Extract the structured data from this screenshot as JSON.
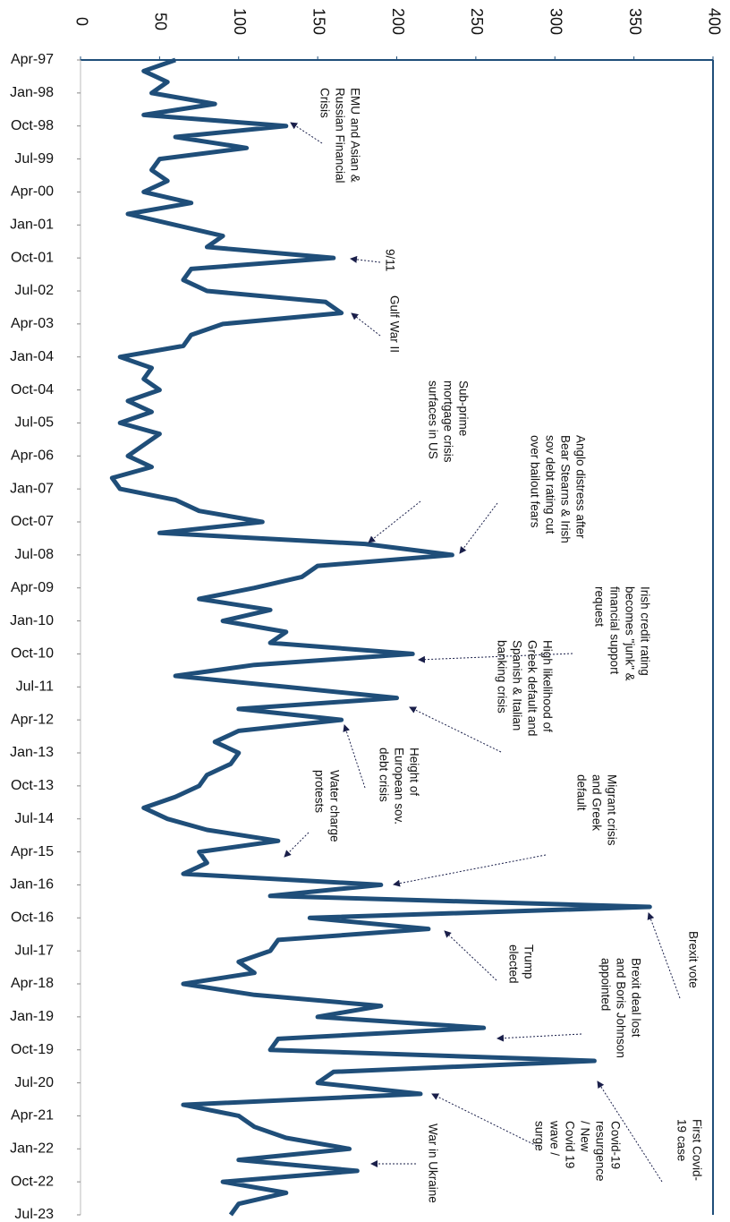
{
  "chart_data": {
    "type": "line",
    "orientation": "vertical-categories",
    "categories": [
      "Apr-97",
      null,
      null,
      "Jan-98",
      null,
      null,
      "Oct-98",
      null,
      null,
      "Jul-99",
      null,
      null,
      "Apr-00",
      null,
      null,
      "Jan-01",
      null,
      null,
      "Oct-01",
      null,
      null,
      "Jul-02",
      null,
      null,
      "Apr-03",
      null,
      null,
      "Jan-04",
      null,
      null,
      "Oct-04",
      null,
      null,
      "Jul-05",
      null,
      null,
      "Apr-06",
      null,
      null,
      "Jan-07",
      null,
      null,
      "Oct-07",
      null,
      null,
      "Jul-08",
      null,
      null,
      "Apr-09",
      null,
      null,
      "Jan-10",
      null,
      null,
      "Oct-10",
      null,
      null,
      "Jul-11",
      null,
      null,
      "Apr-12",
      null,
      null,
      "Jan-13",
      null,
      null,
      "Oct-13",
      null,
      null,
      "Jul-14",
      null,
      null,
      "Apr-15",
      null,
      null,
      "Jan-16",
      null,
      null,
      "Oct-16",
      null,
      null,
      "Jul-17",
      null,
      null,
      "Apr-18",
      null,
      null,
      "Jan-19",
      null,
      null,
      "Oct-19",
      null,
      null,
      "Jul-20",
      null,
      null,
      "Apr-21",
      null,
      null,
      "Jan-22",
      null,
      null,
      "Oct-22",
      null,
      null,
      "Jul-23"
    ],
    "values": [
      60,
      40,
      55,
      45,
      85,
      40,
      130,
      60,
      105,
      50,
      45,
      55,
      40,
      70,
      30,
      60,
      90,
      80,
      160,
      70,
      65,
      80,
      155,
      165,
      90,
      70,
      65,
      25,
      45,
      40,
      50,
      30,
      45,
      25,
      50,
      40,
      30,
      45,
      20,
      25,
      60,
      75,
      115,
      50,
      180,
      235,
      150,
      140,
      110,
      75,
      120,
      90,
      130,
      120,
      210,
      110,
      60,
      130,
      200,
      100,
      165,
      100,
      85,
      100,
      95,
      80,
      75,
      60,
      40,
      55,
      80,
      125,
      75,
      80,
      65,
      190,
      120,
      360,
      145,
      220,
      125,
      120,
      100,
      110,
      65,
      110,
      190,
      150,
      255,
      125,
      120,
      325,
      160,
      150,
      215,
      65,
      100,
      110,
      130,
      170,
      100,
      175,
      90,
      130,
      100,
      95
    ],
    "color": "#1f4e79",
    "ylim": [
      0,
      400
    ],
    "yticks": [
      0,
      50,
      100,
      150,
      200,
      250,
      300,
      350,
      400
    ],
    "annotations": [
      [
        "EMU and Asian &",
        "Russian Financial",
        "Crisis"
      ],
      [
        "9/11"
      ],
      [
        "Gulf War II"
      ],
      [
        "Sub-prime",
        "mortgage crisis",
        "surfaces in US"
      ],
      [
        "Anglo distress after",
        "Bear Stearns & Irish",
        "sov debt rating cut",
        "over bailout fears"
      ],
      [
        "Irish credit rating",
        "becomes \"junk\" &",
        "financial support",
        "request"
      ],
      [
        "High likelihood of",
        "Greek default and",
        "Spanish & Italian",
        "banking crisis"
      ],
      [
        "Height of",
        "European sov.",
        "debt crisis"
      ],
      [
        "Water charge",
        "protests"
      ],
      [
        "Migrant crisis",
        "and Greek",
        "default"
      ],
      [
        "Brexit vote"
      ],
      [
        "Trump",
        "elected"
      ],
      [
        "Brexit deal lost",
        "and Boris Johnson",
        "appointed"
      ],
      [
        "First Covid-",
        "19 case"
      ],
      [
        "Covid-19",
        "resurgence",
        "/ New",
        "Covid 19",
        "wave /",
        "surge"
      ],
      [
        "War in Ukraine"
      ]
    ]
  }
}
